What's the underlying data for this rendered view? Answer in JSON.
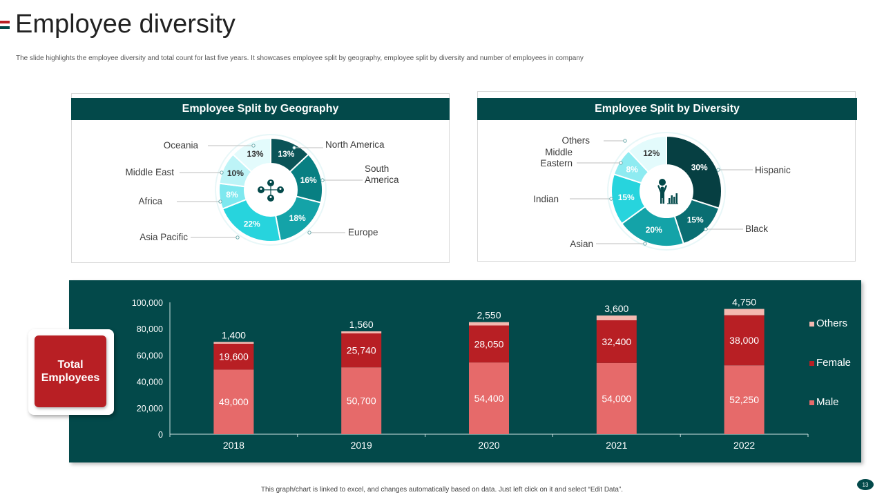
{
  "slide": {
    "title": "Employee diversity",
    "subtitle": "The slide highlights the employee diversity and total count for last five years. It showcases employee split by geography, employee split by diversity and number of employees in company",
    "footer": "This graph/chart is linked to excel, and changes automatically based on data. Just left click on it and select “Edit Data”.",
    "page_number": "13",
    "total_card_label": "Total Employees"
  },
  "colors": {
    "dark_teal": "#03494a",
    "crimson": "#b81f24",
    "bar_male": "#e66a6a",
    "bar_female": "#b81f24",
    "bar_others": "#f4b8b0",
    "white": "#ffffff"
  },
  "chart_data": [
    {
      "type": "pie",
      "title": "Employee Split by Geography",
      "center_icon": "people-money-network-icon",
      "slices": [
        {
          "label": "North America",
          "value": 13,
          "pct_label": "13%",
          "color": "#0b5458",
          "text_color": "#ffffff"
        },
        {
          "label": "South America",
          "value": 16,
          "pct_label": "16%",
          "color": "#087f82",
          "text_color": "#ffffff"
        },
        {
          "label": "Europe",
          "value": 18,
          "pct_label": "18%",
          "color": "#14a3a8",
          "text_color": "#ffffff"
        },
        {
          "label": "Asia Pacific",
          "value": 22,
          "pct_label": "22%",
          "color": "#27d4dd",
          "text_color": "#ffffff"
        },
        {
          "label": "Africa",
          "value": 8,
          "pct_label": "8%",
          "color": "#7ee8ef",
          "text_color": "#ffffff"
        },
        {
          "label": "Middle East",
          "value": 10,
          "pct_label": "10%",
          "color": "#bdf4f7",
          "text_color": "#333333"
        },
        {
          "label": "Oceania",
          "value": 13,
          "pct_label": "13%",
          "color": "#e3fbfc",
          "text_color": "#333333"
        }
      ]
    },
    {
      "type": "pie",
      "title": "Employee Split by Diversity",
      "center_icon": "person-growth-chart-icon",
      "slices": [
        {
          "label": "Hispanic",
          "value": 30,
          "pct_label": "30%",
          "color": "#063f42",
          "text_color": "#ffffff"
        },
        {
          "label": "Black",
          "value": 15,
          "pct_label": "15%",
          "color": "#0a6e72",
          "text_color": "#ffffff"
        },
        {
          "label": "Asian",
          "value": 20,
          "pct_label": "20%",
          "color": "#14a3a8",
          "text_color": "#ffffff"
        },
        {
          "label": "Indian",
          "value": 15,
          "pct_label": "15%",
          "color": "#27d4dd",
          "text_color": "#ffffff"
        },
        {
          "label": "Middle Eastern",
          "value": 8,
          "pct_label": "8%",
          "color": "#8eebf1",
          "text_color": "#ffffff"
        },
        {
          "label": "Others",
          "value": 12,
          "pct_label": "12%",
          "color": "#e3fbfc",
          "text_color": "#333333"
        }
      ]
    },
    {
      "type": "bar",
      "stacked": true,
      "categories": [
        "2018",
        "2019",
        "2020",
        "2021",
        "2022"
      ],
      "ylim": [
        0,
        100000
      ],
      "yticks": [
        0,
        20000,
        40000,
        60000,
        80000,
        100000
      ],
      "ytick_labels": [
        "0",
        "20,000",
        "40,000",
        "60,000",
        "80,000",
        "100,000"
      ],
      "legend_position": "right",
      "series": [
        {
          "name": "Male",
          "values": [
            49000,
            50700,
            54400,
            54000,
            52250
          ],
          "labels": [
            "49,000",
            "50,700",
            "54,400",
            "54,000",
            "52,250"
          ],
          "color": "#e66a6a",
          "label_color": "#ffffff"
        },
        {
          "name": "Female",
          "values": [
            19600,
            25740,
            28050,
            32400,
            38000
          ],
          "labels": [
            "19,600",
            "25,740",
            "28,050",
            "32,400",
            "38,000"
          ],
          "color": "#b81f24",
          "label_color": "#ffffff"
        },
        {
          "name": "Others",
          "values": [
            1400,
            1560,
            2550,
            3600,
            4750
          ],
          "labels": [
            "1,400",
            "1,560",
            "2,550",
            "3,600",
            "4,750"
          ],
          "color": "#f4b8b0",
          "label_color": "#ffffff"
        }
      ]
    }
  ]
}
